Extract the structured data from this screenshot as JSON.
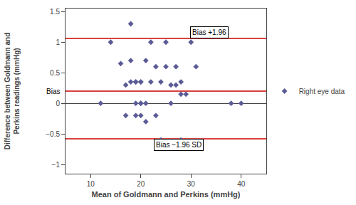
{
  "chart_data": {
    "type": "scatter",
    "x_label": "Mean of Goldmann and Perkins (mmHg)",
    "y_label": "Difference between Goldmann and\nPerkins readings (mmHg)",
    "series": [
      {
        "name": "Right eye data",
        "color": "#5b5b96",
        "marker": "diamond",
        "x": [
          12,
          14,
          16,
          17,
          17,
          18,
          18,
          18,
          19,
          19,
          19,
          19,
          20,
          20,
          20,
          20,
          20,
          21,
          21,
          21,
          22,
          22,
          23,
          23,
          24,
          24,
          25,
          25,
          26,
          26,
          27,
          27,
          28,
          28,
          28,
          29,
          30,
          31,
          38,
          40
        ],
        "values": [
          0.0,
          1.0,
          0.65,
          0.3,
          -0.2,
          0.7,
          0.35,
          1.3,
          0.35,
          0.35,
          0.0,
          -0.2,
          0.35,
          0.35,
          0.0,
          0.0,
          -0.2,
          0.7,
          0.0,
          -0.3,
          0.35,
          1.0,
          0.6,
          -0.2,
          0.35,
          -0.6,
          1.0,
          0.6,
          0.3,
          0.0,
          0.6,
          0.3,
          0.35,
          0.15,
          -0.6,
          0.15,
          1.0,
          0.6,
          0.0,
          0.0
        ]
      }
    ],
    "reference_lines": [
      {
        "value": 1.06,
        "label": "Bias +1.96",
        "color": "#cc0000"
      },
      {
        "value": 0.2,
        "label": "Bias",
        "color": "#cc0000"
      },
      {
        "value": -0.58,
        "label": "Bias −1.96 SD",
        "color": "#cc0000"
      }
    ],
    "xlim": [
      5,
      45
    ],
    "xticks": [
      10,
      20,
      30,
      40
    ],
    "ylim": [
      -1.15,
      1.55
    ],
    "yticks": [
      {
        "value": -1,
        "label": "−1"
      },
      {
        "value": -0.5,
        "label": "−0.5"
      },
      0,
      0.5,
      1,
      1.5
    ],
    "grid": false,
    "legend": "right"
  }
}
